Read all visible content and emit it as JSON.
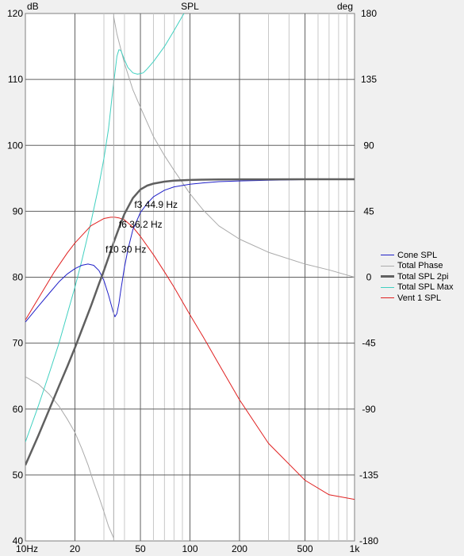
{
  "chart_data": {
    "type": "line",
    "title": "SPL",
    "y_left_unit": "dB",
    "y_right_unit": "deg",
    "x_scale": "log",
    "xlim": [
      10,
      1000
    ],
    "ylim_left": [
      40,
      120
    ],
    "ylim_right": [
      -180,
      180
    ],
    "x_ticks": [
      {
        "value": 10,
        "label": "10Hz"
      },
      {
        "value": 20,
        "label": "20"
      },
      {
        "value": 50,
        "label": "50"
      },
      {
        "value": 100,
        "label": "100"
      },
      {
        "value": 200,
        "label": "200"
      },
      {
        "value": 500,
        "label": "500"
      },
      {
        "value": 1000,
        "label": "1k"
      }
    ],
    "y_left_ticks": [
      120,
      110,
      100,
      90,
      80,
      70,
      60,
      50,
      40
    ],
    "y_right_ticks": [
      180,
      135,
      90,
      45,
      0,
      -45,
      -90,
      -135,
      -180
    ],
    "grid": true,
    "legend_position": "right",
    "series": [
      {
        "name": "Cone SPL",
        "color": "#2020c8",
        "axis": "left",
        "x": [
          10,
          12,
          14,
          16,
          18,
          20,
          22,
          24,
          26,
          28,
          30,
          32,
          34,
          35,
          36,
          37,
          38,
          40,
          42,
          45,
          50,
          55,
          60,
          70,
          80,
          100,
          120,
          150,
          200,
          300,
          500,
          700,
          1000
        ],
        "y": [
          73.2,
          75.6,
          77.6,
          79.3,
          80.5,
          81.3,
          81.8,
          82.0,
          81.8,
          81.0,
          79.5,
          77.3,
          74.9,
          74.0,
          74.5,
          76.0,
          78.0,
          81.5,
          84.2,
          87.2,
          89.8,
          91.2,
          92.2,
          93.2,
          93.7,
          94.1,
          94.3,
          94.5,
          94.6,
          94.7,
          94.8,
          94.8,
          94.8
        ]
      },
      {
        "name": "Total Phase",
        "color": "#aaaaaa",
        "axis": "right",
        "x": [
          10,
          12,
          14,
          16,
          18,
          20,
          22,
          24,
          26,
          28,
          30,
          32,
          34.4,
          null,
          34.4,
          36,
          40,
          45,
          50,
          60,
          70,
          80,
          100,
          120,
          150,
          200,
          300,
          500,
          700,
          1000
        ],
        "y": [
          -68,
          -73,
          -80,
          -88,
          -97,
          -106,
          -117,
          -128,
          -140,
          -150,
          -160,
          -170,
          -178,
          null,
          178,
          166,
          146,
          128,
          116,
          96,
          83,
          73,
          57,
          46,
          35,
          26,
          17,
          9,
          5,
          0
        ]
      },
      {
        "name": "Total SPL 2pi",
        "color": "#606060",
        "axis": "left",
        "x": [
          10,
          12,
          14,
          16,
          18,
          20,
          22,
          25,
          28,
          30,
          32,
          35,
          38,
          40,
          42,
          45,
          50,
          55,
          60,
          70,
          80,
          100,
          120,
          150,
          200,
          300,
          500,
          1000
        ],
        "y": [
          51.5,
          56.0,
          60.0,
          63.5,
          66.5,
          69.3,
          72.0,
          75.6,
          79.0,
          81.0,
          83.0,
          85.8,
          88.2,
          89.6,
          90.6,
          92.0,
          93.3,
          93.9,
          94.2,
          94.5,
          94.65,
          94.75,
          94.8,
          94.82,
          94.84,
          94.85,
          94.86,
          94.86
        ]
      },
      {
        "name": "Total SPL Max",
        "color": "#40d0c0",
        "axis": "left",
        "x": [
          10,
          12,
          14,
          16,
          18,
          20,
          22,
          25,
          28,
          30,
          32,
          34,
          35,
          36,
          37,
          38,
          40,
          42,
          45,
          48,
          52,
          55,
          60,
          70,
          80,
          90,
          100
        ],
        "y": [
          55.0,
          60.5,
          65.5,
          70.0,
          74.5,
          78.5,
          82.5,
          88.3,
          94.0,
          98.0,
          102.5,
          108.5,
          111.0,
          113.5,
          114.5,
          114.4,
          113.0,
          111.8,
          111.0,
          110.8,
          111.0,
          111.6,
          112.7,
          115.0,
          117.4,
          119.6,
          121.5
        ]
      },
      {
        "name": "Vent 1 SPL",
        "color": "#e02020",
        "axis": "left",
        "x": [
          10,
          12,
          15,
          18,
          20,
          25,
          30,
          33,
          35,
          37,
          40,
          45,
          50,
          60,
          70,
          80,
          100,
          120,
          150,
          200,
          300,
          500,
          700,
          1000
        ],
        "y": [
          73.5,
          76.8,
          80.8,
          83.7,
          85.2,
          87.8,
          88.9,
          89.1,
          89.1,
          89.0,
          88.7,
          87.6,
          86.2,
          83.4,
          80.8,
          78.5,
          74.3,
          71.0,
          66.8,
          61.4,
          54.8,
          49.2,
          47.0,
          46.3
        ]
      }
    ],
    "annotations": [
      {
        "text": "f3 44.9 Hz",
        "x": 44.9,
        "y": 91
      },
      {
        "text": "f6 36.2 Hz",
        "x": 36.2,
        "y": 88
      },
      {
        "text": "f10 30 Hz",
        "x": 30,
        "y": 84.2
      }
    ]
  }
}
